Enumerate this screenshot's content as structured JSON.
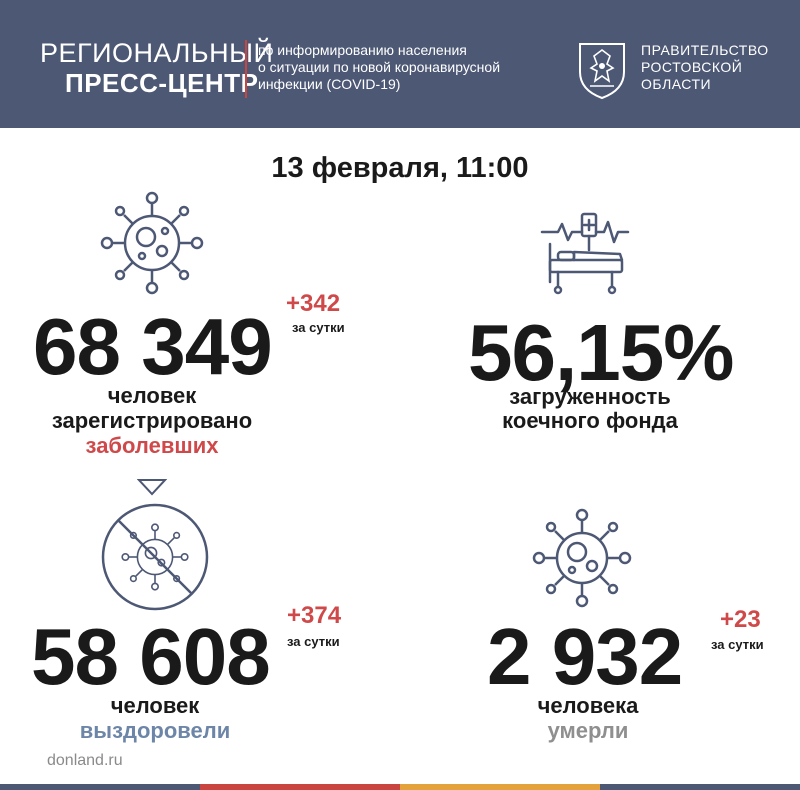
{
  "header": {
    "brand_line1": "РЕГИОНАЛЬНЫЙ",
    "brand_line2": "ПРЕСС-ЦЕНТР",
    "subtitle_lines": [
      "по информированию населения",
      "о ситуации по новой коронавирусной",
      "инфекции (COVID-19)"
    ],
    "gov_lines": [
      "ПРАВИТЕЛЬСТВО",
      "РОСТОВСКОЙ",
      "ОБЛАСТИ"
    ],
    "emblem_icon": "coat-of-arms-icon"
  },
  "date": "13 февраля, 11:00",
  "cases": {
    "value": "68 349",
    "delta": "+342",
    "per_day": "за сутки",
    "label_lines": [
      "человек",
      "зарегистрировано"
    ],
    "label_accent": "заболевших",
    "icon": "virus-icon"
  },
  "beds": {
    "value": "56,15%",
    "label_lines": [
      "загруженность",
      "коечного фонда"
    ],
    "icon": "hospital-bed-icon"
  },
  "recovered": {
    "value": "58 608",
    "delta": "+374",
    "per_day": "за сутки",
    "label_line": "человек",
    "label_accent": "выздоровели",
    "icon": "crossed-virus-icon"
  },
  "deaths": {
    "value": "2 932",
    "delta": "+23",
    "per_day": "за сутки",
    "label_line": "человека",
    "label_accent": "умерли",
    "icon": "virus-icon"
  },
  "footer": {
    "url": "donland.ru"
  },
  "colors": {
    "header_bg": "#4d5875",
    "accent_red": "#d0494a",
    "accent_blue": "#6d86a8",
    "muted_gray": "#8f8f8f",
    "bar": [
      "#4d5875",
      "#c9453f",
      "#e3a23c",
      "#4d5875"
    ]
  }
}
